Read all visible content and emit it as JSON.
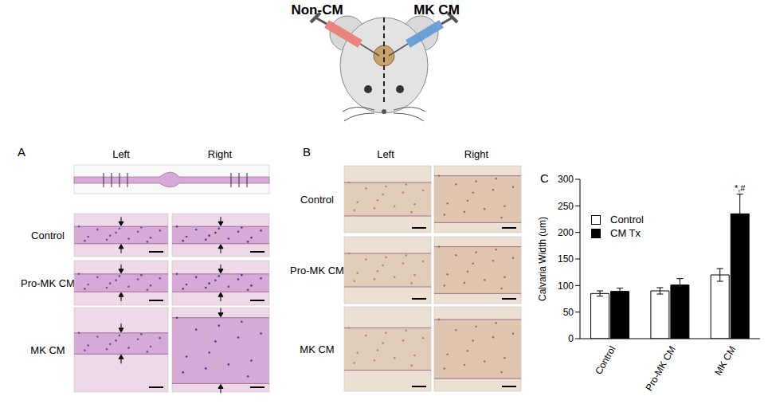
{
  "diagram": {
    "left_label": "Non-CM",
    "right_label": "MK CM"
  },
  "panel_A": {
    "label": "A",
    "columns": [
      "Left",
      "Right"
    ],
    "rows": [
      "Control",
      "Pro-MK CM",
      "MK CM"
    ]
  },
  "panel_B": {
    "label": "B",
    "columns": [
      "Left",
      "Right"
    ],
    "rows": [
      "Control",
      "Pro-MK CM",
      "MK CM"
    ]
  },
  "chart_data": {
    "type": "bar",
    "panel_label": "C",
    "y_label": "Calvaria Width (um)",
    "categories": [
      "Control",
      "Pro-MK CM",
      "MK CM"
    ],
    "series": [
      {
        "name": "Control",
        "color": "#ffffff",
        "values": [
          85,
          90,
          120
        ],
        "errors": [
          5,
          6,
          12
        ]
      },
      {
        "name": "CM Tx",
        "color": "#000000",
        "values": [
          89,
          101,
          235
        ],
        "errors": [
          6,
          12,
          37
        ],
        "annotations": [
          null,
          null,
          "*,#"
        ]
      }
    ],
    "ylim": [
      0,
      300
    ],
    "yticks": [
      0,
      50,
      100,
      150,
      200,
      250,
      300
    ],
    "legend": "top-left"
  }
}
